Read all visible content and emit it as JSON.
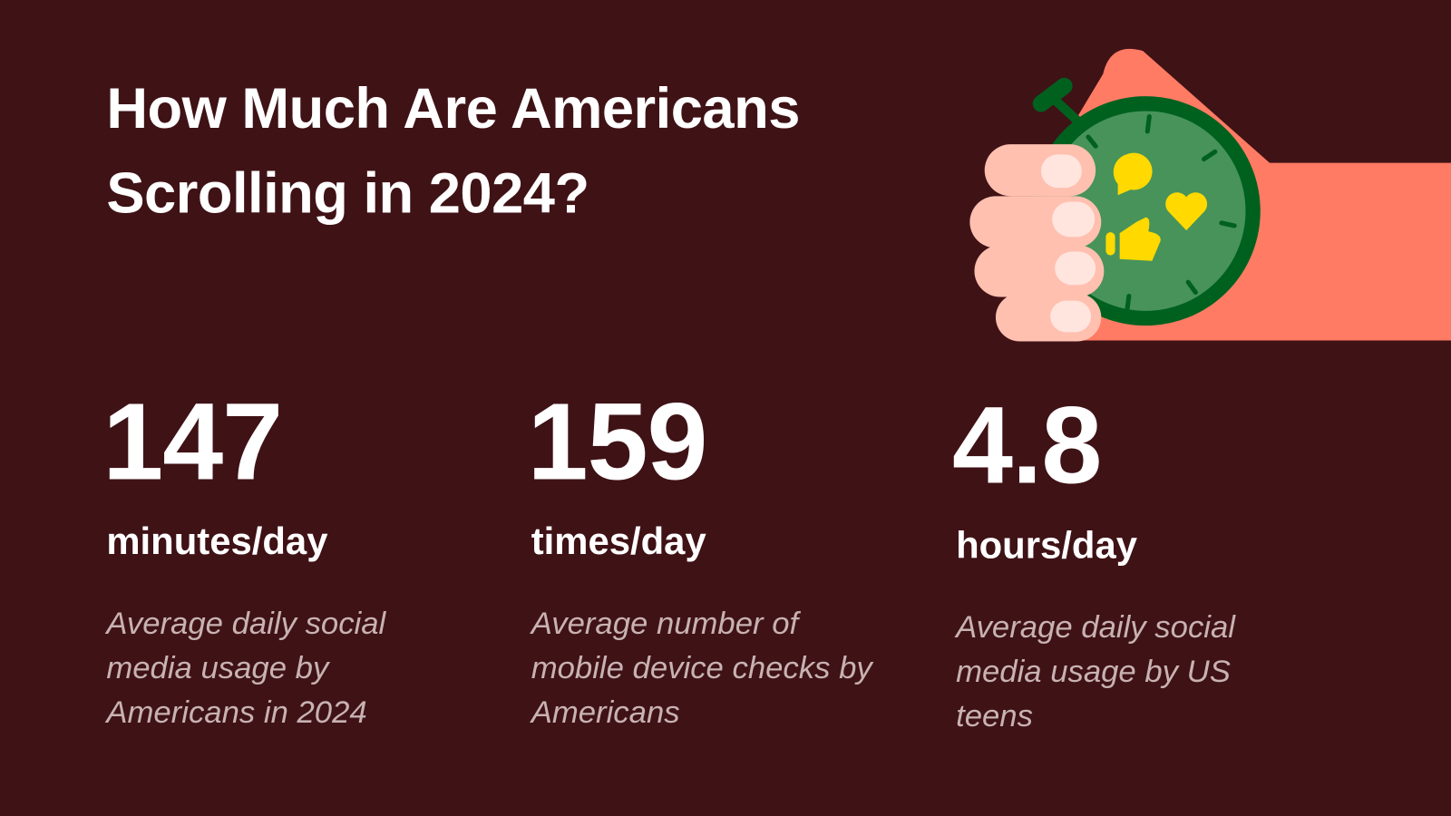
{
  "title": {
    "line1": "How Much Are Americans",
    "line2": "Scrolling in 2024?"
  },
  "stats": [
    {
      "value": "147",
      "unit": "minutes/day",
      "description": "Average daily social media usage by Americans in 2024"
    },
    {
      "value": "159",
      "unit": "times/day",
      "description": "Average number of mobile device checks by Americans"
    },
    {
      "value": "4.8",
      "unit": "hours/day",
      "description": "Average daily social media usage by US teens"
    }
  ],
  "illustration": {
    "name": "hand-holding-stopwatch",
    "icons": [
      "speech-bubble-icon",
      "heart-icon",
      "thumbs-up-icon"
    ]
  },
  "colors": {
    "background": "#3f1216",
    "arm": "#ff7b63",
    "fingers": "#ffc0b0",
    "nails": "#ffe5de",
    "ring": "#00611f",
    "face": "#47935a",
    "icons": "#ffd900",
    "description": "#c8b2b2"
  }
}
